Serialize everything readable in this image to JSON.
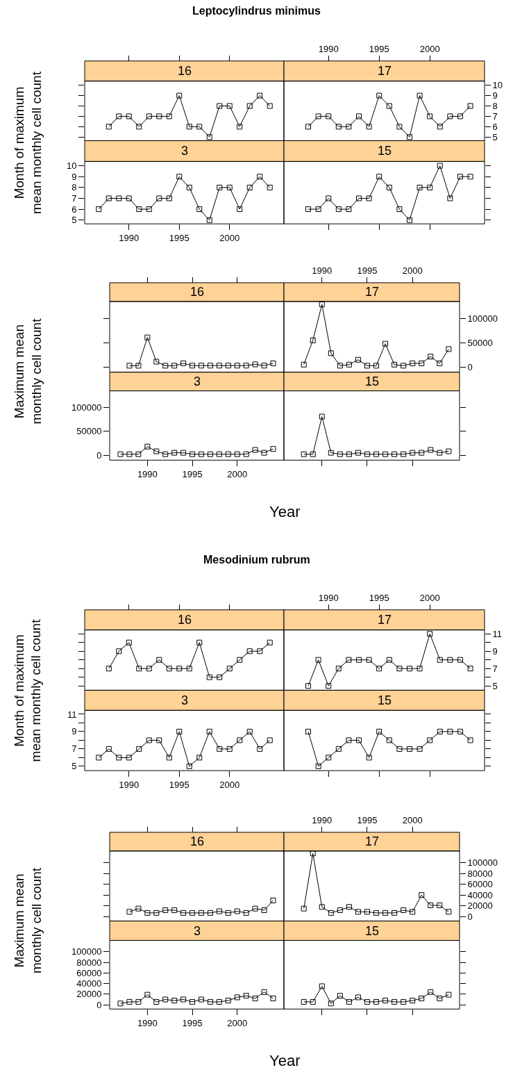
{
  "chart_data": [
    {
      "type": "line",
      "title": "16",
      "annotations": [
        "Leptocylindrus minimus"
      ],
      "tick_labels": false,
      "marker": "square",
      "line_style": "solid",
      "x": [
        1988,
        1989,
        1990,
        1991,
        1992,
        1993,
        1994,
        1995,
        1996,
        1997,
        1998,
        1999,
        2000,
        2001,
        2002,
        2003,
        2004
      ],
      "xlim": [
        1985.6,
        2005.4
      ],
      "xticks": [
        1990,
        1995,
        2000
      ],
      "ylim": [
        4.65,
        10.4
      ],
      "yticks": [
        5,
        6,
        7,
        8,
        9,
        10
      ],
      "series": [
        {
          "color": "#000000",
          "values": [
            6,
            7,
            7,
            6,
            7,
            7,
            7,
            9,
            6,
            6,
            5,
            8,
            8,
            6,
            8,
            9,
            8
          ]
        }
      ]
    },
    {
      "type": "line",
      "title": "17",
      "marker": "square",
      "line_style": "solid",
      "x": [
        1988,
        1989,
        1990,
        1991,
        1992,
        1993,
        1994,
        1995,
        1996,
        1997,
        1998,
        1999,
        2000,
        2001,
        2002,
        2003,
        2004
      ],
      "xlim": [
        1985.6,
        2005.4
      ],
      "xticks": [
        1990,
        1995,
        2000
      ],
      "ylim": [
        4.65,
        10.4
      ],
      "yticks": [
        5,
        6,
        7,
        8,
        9,
        10
      ],
      "series": [
        {
          "color": "#000000",
          "values": [
            6,
            7,
            7,
            6,
            6,
            7,
            6,
            9,
            8,
            6,
            5,
            9,
            7,
            6,
            7,
            7,
            8
          ]
        }
      ]
    },
    {
      "type": "line",
      "title": "3",
      "ylabel": "Month of maximum\nmean monthly cell count",
      "marker": "square",
      "line_style": "solid",
      "x": [
        1987,
        1988,
        1989,
        1990,
        1991,
        1992,
        1993,
        1994,
        1995,
        1996,
        1997,
        1998,
        1999,
        2000,
        2001,
        2002,
        2003,
        2004
      ],
      "xlim": [
        1985.6,
        2005.4
      ],
      "xticks": [
        1990,
        1995,
        2000
      ],
      "ylim": [
        4.65,
        10.4
      ],
      "yticks": [
        5,
        6,
        7,
        8,
        9,
        10
      ],
      "series": [
        {
          "color": "#000000",
          "values": [
            6,
            7,
            7,
            7,
            6,
            6,
            7,
            7,
            9,
            8,
            6,
            5,
            8,
            8,
            6,
            8,
            9,
            8
          ]
        }
      ]
    },
    {
      "type": "line",
      "title": "15",
      "tick_labels": false,
      "marker": "square",
      "line_style": "solid",
      "x": [
        1988,
        1989,
        1990,
        1991,
        1992,
        1993,
        1994,
        1995,
        1996,
        1997,
        1998,
        1999,
        2000,
        2001,
        2002,
        2003,
        2004
      ],
      "xlim": [
        1985.6,
        2005.4
      ],
      "xticks": [
        1990,
        1995,
        2000
      ],
      "ylim": [
        4.65,
        10.4
      ],
      "yticks": [
        5,
        6,
        7,
        8,
        9,
        10
      ],
      "series": [
        {
          "color": "#000000",
          "values": [
            6,
            6,
            7,
            6,
            6,
            7,
            7,
            9,
            8,
            6,
            5,
            8,
            8,
            10,
            7,
            9,
            9
          ]
        }
      ]
    },
    {
      "type": "line",
      "title": "16",
      "tick_labels": false,
      "marker": "square",
      "line_style": "solid",
      "x": [
        1988,
        1989,
        1990,
        1991,
        1992,
        1993,
        1994,
        1995,
        1996,
        1997,
        1998,
        1999,
        2000,
        2001,
        2002,
        2003,
        2004
      ],
      "xlim": [
        1985.8,
        2005.2
      ],
      "xticks": [
        1990,
        1995,
        2000
      ],
      "ylim": [
        -10500,
        135000
      ],
      "yticks": [
        0,
        50000,
        100000
      ],
      "series": [
        {
          "color": "#000000",
          "values": [
            2800,
            2800,
            61000,
            11000,
            2800,
            2800,
            7600,
            3000,
            3000,
            3000,
            3000,
            3000,
            3000,
            3000,
            5500,
            3000,
            7600
          ]
        }
      ]
    },
    {
      "type": "line",
      "title": "17",
      "marker": "square",
      "line_style": "solid",
      "x": [
        1988,
        1989,
        1990,
        1991,
        1992,
        1993,
        1994,
        1995,
        1996,
        1997,
        1998,
        1999,
        2000,
        2001,
        2002,
        2003,
        2004
      ],
      "xlim": [
        1985.8,
        2005.2
      ],
      "xticks": [
        1990,
        1995,
        2000
      ],
      "ylim": [
        -10500,
        135000
      ],
      "yticks": [
        0,
        50000,
        100000
      ],
      "series": [
        {
          "color": "#000000",
          "values": [
            5000,
            55000,
            129000,
            28500,
            2800,
            5000,
            15000,
            2800,
            2800,
            48000,
            5000,
            2800,
            7600,
            7600,
            21500,
            7600,
            37000
          ]
        }
      ]
    },
    {
      "type": "line",
      "title": "3",
      "ylabel": "Maximum mean\nmonthly cell count",
      "xlabel": "Year",
      "marker": "square",
      "line_style": "solid",
      "x": [
        1987,
        1988,
        1989,
        1990,
        1991,
        1992,
        1993,
        1994,
        1995,
        1996,
        1997,
        1998,
        1999,
        2000,
        2001,
        2002,
        2003,
        2004
      ],
      "xlim": [
        1985.8,
        2005.2
      ],
      "xticks": [
        1990,
        1995,
        2000
      ],
      "ylim": [
        -10500,
        135000
      ],
      "yticks": [
        0,
        50000,
        100000
      ],
      "series": [
        {
          "color": "#000000",
          "values": [
            2000,
            2000,
            2000,
            18000,
            8000,
            2000,
            5000,
            5000,
            2000,
            2000,
            2000,
            2000,
            2000,
            2000,
            2000,
            11000,
            5000,
            13000
          ]
        }
      ]
    },
    {
      "type": "line",
      "title": "15",
      "tick_labels": false,
      "marker": "square",
      "line_style": "solid",
      "x": [
        1988,
        1989,
        1990,
        1991,
        1992,
        1993,
        1994,
        1995,
        1996,
        1997,
        1998,
        1999,
        2000,
        2001,
        2002,
        2003,
        2004
      ],
      "xlim": [
        1985.8,
        2005.2
      ],
      "xticks": [
        1990,
        1995,
        2000
      ],
      "ylim": [
        -10500,
        135000
      ],
      "yticks": [
        0,
        50000,
        100000
      ],
      "series": [
        {
          "color": "#000000",
          "values": [
            2000,
            2000,
            81000,
            5000,
            2000,
            2000,
            5000,
            2000,
            2000,
            2000,
            2000,
            2000,
            5000,
            5000,
            11000,
            5000,
            8000
          ]
        }
      ]
    },
    {
      "type": "line",
      "title": "16",
      "annotations": [
        "Mesodinium rubrum"
      ],
      "tick_labels": false,
      "marker": "square",
      "line_style": "solid",
      "x": [
        1988,
        1989,
        1990,
        1991,
        1992,
        1993,
        1994,
        1995,
        1996,
        1997,
        1998,
        1999,
        2000,
        2001,
        2002,
        2003,
        2004
      ],
      "xlim": [
        1985.6,
        2005.4
      ],
      "xticks": [
        1990,
        1995,
        2000
      ],
      "ylim": [
        4.5,
        11.45
      ],
      "yticks": [
        5,
        {
          "value": 6,
          "label": null
        },
        7,
        {
          "value": 8,
          "label": null
        },
        9,
        {
          "value": 10,
          "label": null
        },
        11
      ],
      "series": [
        {
          "color": "#000000",
          "values": [
            7,
            9,
            10,
            7,
            7,
            8,
            7,
            7,
            7,
            10,
            6,
            6,
            7,
            8,
            9,
            9,
            10
          ]
        }
      ]
    },
    {
      "type": "line",
      "title": "17",
      "marker": "square",
      "line_style": "solid",
      "x": [
        1988,
        1989,
        1990,
        1991,
        1992,
        1993,
        1994,
        1995,
        1996,
        1997,
        1998,
        1999,
        2000,
        2001,
        2002,
        2003,
        2004
      ],
      "xlim": [
        1985.6,
        2005.4
      ],
      "xticks": [
        1990,
        1995,
        2000
      ],
      "ylim": [
        4.5,
        11.45
      ],
      "yticks": [
        5,
        {
          "value": 6,
          "label": null
        },
        7,
        {
          "value": 8,
          "label": null
        },
        9,
        {
          "value": 10,
          "label": null
        },
        11
      ],
      "series": [
        {
          "color": "#000000",
          "values": [
            5,
            8,
            5,
            7,
            8,
            8,
            8,
            7,
            8,
            7,
            7,
            7,
            11,
            8,
            8,
            8,
            7
          ]
        }
      ]
    },
    {
      "type": "line",
      "title": "3",
      "ylabel": "Month of maximum\nmean monthly cell count",
      "marker": "square",
      "line_style": "solid",
      "x": [
        1987,
        1988,
        1989,
        1990,
        1991,
        1992,
        1993,
        1994,
        1995,
        1996,
        1997,
        1998,
        1999,
        2000,
        2001,
        2002,
        2003,
        2004
      ],
      "xlim": [
        1985.6,
        2005.4
      ],
      "xticks": [
        1990,
        1995,
        2000
      ],
      "ylim": [
        4.5,
        11.45
      ],
      "yticks": [
        5,
        {
          "value": 6,
          "label": null
        },
        7,
        {
          "value": 8,
          "label": null
        },
        9,
        {
          "value": 10,
          "label": null
        },
        11
      ],
      "series": [
        {
          "color": "#000000",
          "values": [
            6,
            7,
            6,
            6,
            7,
            8,
            8,
            6,
            9,
            5,
            6,
            9,
            7,
            7,
            8,
            9,
            7,
            8
          ]
        }
      ]
    },
    {
      "type": "line",
      "title": "15",
      "tick_labels": false,
      "marker": "square",
      "line_style": "solid",
      "x": [
        1988,
        1989,
        1990,
        1991,
        1992,
        1993,
        1994,
        1995,
        1996,
        1997,
        1998,
        1999,
        2000,
        2001,
        2002,
        2003,
        2004
      ],
      "xlim": [
        1985.6,
        2005.4
      ],
      "xticks": [
        1990,
        1995,
        2000
      ],
      "ylim": [
        4.5,
        11.45
      ],
      "yticks": [
        5,
        {
          "value": 6,
          "label": null
        },
        7,
        {
          "value": 8,
          "label": null
        },
        9,
        {
          "value": 10,
          "label": null
        },
        11
      ],
      "series": [
        {
          "color": "#000000",
          "values": [
            9,
            5,
            6,
            7,
            8,
            8,
            6,
            9,
            8,
            7,
            7,
            7,
            8,
            9,
            9,
            9,
            8
          ]
        }
      ]
    },
    {
      "type": "line",
      "title": "16",
      "tick_labels": false,
      "marker": "square",
      "line_style": "solid",
      "x": [
        1988,
        1989,
        1990,
        1991,
        1992,
        1993,
        1994,
        1995,
        1996,
        1997,
        1998,
        1999,
        2000,
        2001,
        2002,
        2003,
        2004
      ],
      "xlim": [
        1985.8,
        2005.2
      ],
      "xticks": [
        1990,
        1995,
        2000
      ],
      "ylim": [
        -8000,
        121500
      ],
      "yticks": [
        0,
        20000,
        40000,
        60000,
        80000,
        100000
      ],
      "series": [
        {
          "color": "#000000",
          "values": [
            9000,
            15000,
            7000,
            7000,
            12000,
            12000,
            7000,
            7000,
            7000,
            7000,
            10000,
            7000,
            10000,
            7000,
            15000,
            12000,
            30000
          ]
        }
      ]
    },
    {
      "type": "line",
      "title": "17",
      "marker": "square",
      "line_style": "solid",
      "x": [
        1988,
        1989,
        1990,
        1991,
        1992,
        1993,
        1994,
        1995,
        1996,
        1997,
        1998,
        1999,
        2000,
        2001,
        2002,
        2003,
        2004
      ],
      "xlim": [
        1985.8,
        2005.2
      ],
      "xticks": [
        1990,
        1995,
        2000
      ],
      "ylim": [
        -8000,
        121500
      ],
      "yticks": [
        0,
        20000,
        40000,
        60000,
        80000,
        100000
      ],
      "series": [
        {
          "color": "#000000",
          "values": [
            15000,
            117000,
            18000,
            7000,
            12000,
            18000,
            9000,
            9000,
            7000,
            7000,
            7000,
            12000,
            9000,
            40000,
            21000,
            21000,
            9000
          ]
        }
      ]
    },
    {
      "type": "line",
      "title": "3",
      "ylabel": "Maximum mean\nmonthly cell count",
      "xlabel": "Year",
      "marker": "square",
      "line_style": "solid",
      "x": [
        1987,
        1988,
        1989,
        1990,
        1991,
        1992,
        1993,
        1994,
        1995,
        1996,
        1997,
        1998,
        1999,
        2000,
        2001,
        2002,
        2003,
        2004
      ],
      "xlim": [
        1985.8,
        2005.2
      ],
      "xticks": [
        1990,
        1995,
        2000
      ],
      "ylim": [
        -8000,
        121500
      ],
      "yticks": [
        0,
        20000,
        40000,
        60000,
        80000,
        100000
      ],
      "series": [
        {
          "color": "#000000",
          "values": [
            2500,
            5500,
            5500,
            19000,
            5500,
            10000,
            8000,
            10000,
            5500,
            10000,
            5500,
            5500,
            8000,
            14000,
            17000,
            12000,
            24000,
            12000
          ]
        }
      ]
    },
    {
      "type": "line",
      "title": "15",
      "tick_labels": false,
      "marker": "square",
      "line_style": "solid",
      "x": [
        1988,
        1989,
        1990,
        1991,
        1992,
        1993,
        1994,
        1995,
        1996,
        1997,
        1998,
        1999,
        2000,
        2001,
        2002,
        2003,
        2004
      ],
      "xlim": [
        1985.8,
        2005.2
      ],
      "xticks": [
        1990,
        1995,
        2000
      ],
      "ylim": [
        -8000,
        121500
      ],
      "yticks": [
        0,
        20000,
        40000,
        60000,
        80000,
        100000
      ],
      "series": [
        {
          "color": "#000000",
          "values": [
            5500,
            5500,
            35000,
            2500,
            17000,
            5500,
            14000,
            5500,
            5500,
            8000,
            5500,
            5500,
            8000,
            12000,
            24000,
            12000,
            19000
          ]
        }
      ]
    }
  ]
}
